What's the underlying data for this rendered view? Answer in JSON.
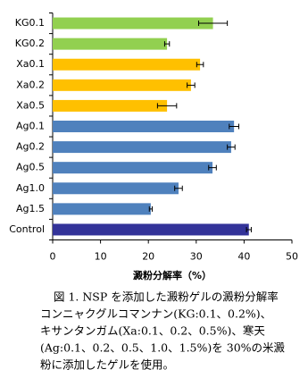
{
  "chart_data": {
    "type": "bar",
    "orientation": "horizontal",
    "categories": [
      "KG0.1",
      "KG0.2",
      "Xa0.1",
      "Xa0.2",
      "Xa0.5",
      "Ag0.1",
      "Ag0.2",
      "Ag0.5",
      "Ag1.0",
      "Ag1.5",
      "Control"
    ],
    "values": [
      33.5,
      23.9,
      30.8,
      28.9,
      23.9,
      37.9,
      37.3,
      33.4,
      26.3,
      20.5,
      41.0
    ],
    "errors": [
      3.0,
      0.5,
      0.7,
      0.8,
      2.0,
      1.0,
      0.8,
      0.8,
      0.8,
      0.3,
      0.5
    ],
    "colors": [
      "#92d050",
      "#92d050",
      "#ffc000",
      "#ffc000",
      "#ffc000",
      "#4f81bd",
      "#4f81bd",
      "#4f81bd",
      "#4f81bd",
      "#4f81bd",
      "#333399"
    ],
    "xlim": [
      0,
      50
    ],
    "xticks": [
      0,
      10,
      20,
      30,
      40,
      50
    ],
    "x_label": "澱粉分解率（%）",
    "caption": [
      "図 1. NSP を添加した澱粉ゲルの澱粉分解率",
      "コンニャクグルコマンナン(KG:0.1、0.2%)、",
      "キサンタンガム(Xa:0.1、0.2、0.5%)、寒天",
      "(Ag:0.1、0.2、0.5、1.0、1.5%)を 30%の米澱",
      "粉に添加したゲルを使用。"
    ]
  }
}
